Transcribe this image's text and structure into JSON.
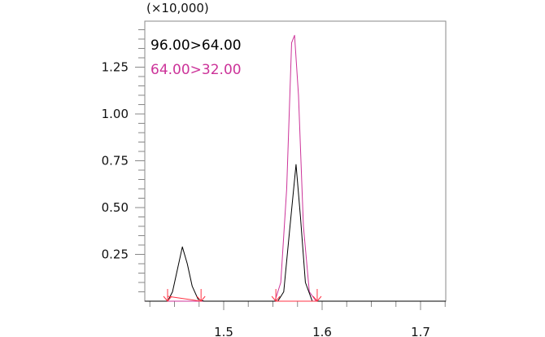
{
  "chart_data": {
    "type": "line",
    "title": "",
    "y_multiplier_label": "(×10,000)",
    "xlabel": "",
    "ylabel": "",
    "xlim": [
      1.42,
      1.7256
    ],
    "ylim": [
      0,
      1.5
    ],
    "x_ticks": [
      1.5,
      1.6,
      1.7
    ],
    "x_tick_labels": [
      "1.5",
      "1.6",
      "1.7"
    ],
    "y_ticks": [
      0.25,
      0.5,
      0.75,
      1.0,
      1.25
    ],
    "y_tick_labels": [
      "0.25",
      "0.50",
      "0.75",
      "1.00",
      "1.25"
    ],
    "grid": false,
    "legend_placement": "top-left",
    "series": [
      {
        "name": "96.00>64.00",
        "color": "#000000",
        "points": [
          [
            1.42,
            0
          ],
          [
            1.443,
            0
          ],
          [
            1.448,
            0.05
          ],
          [
            1.453,
            0.17
          ],
          [
            1.458,
            0.29
          ],
          [
            1.463,
            0.2
          ],
          [
            1.468,
            0.08
          ],
          [
            1.474,
            0.01
          ],
          [
            1.48,
            0
          ],
          [
            1.555,
            0
          ],
          [
            1.561,
            0.05
          ],
          [
            1.567,
            0.38
          ],
          [
            1.5735,
            0.73
          ],
          [
            1.578,
            0.45
          ],
          [
            1.583,
            0.1
          ],
          [
            1.59,
            0
          ],
          [
            1.7256,
            0
          ]
        ]
      },
      {
        "name": "64.00>32.00",
        "color": "#cc3399",
        "points": [
          [
            1.42,
            0
          ],
          [
            1.552,
            0
          ],
          [
            1.558,
            0.1
          ],
          [
            1.564,
            0.6
          ],
          [
            1.569,
            1.38
          ],
          [
            1.572,
            1.42
          ],
          [
            1.576,
            1.1
          ],
          [
            1.581,
            0.4
          ],
          [
            1.587,
            0.05
          ],
          [
            1.594,
            0
          ],
          [
            1.7256,
            0
          ]
        ]
      }
    ],
    "integration_markers": {
      "color": "#ff3344",
      "x": [
        1.443,
        1.477,
        1.553,
        1.595
      ]
    }
  }
}
